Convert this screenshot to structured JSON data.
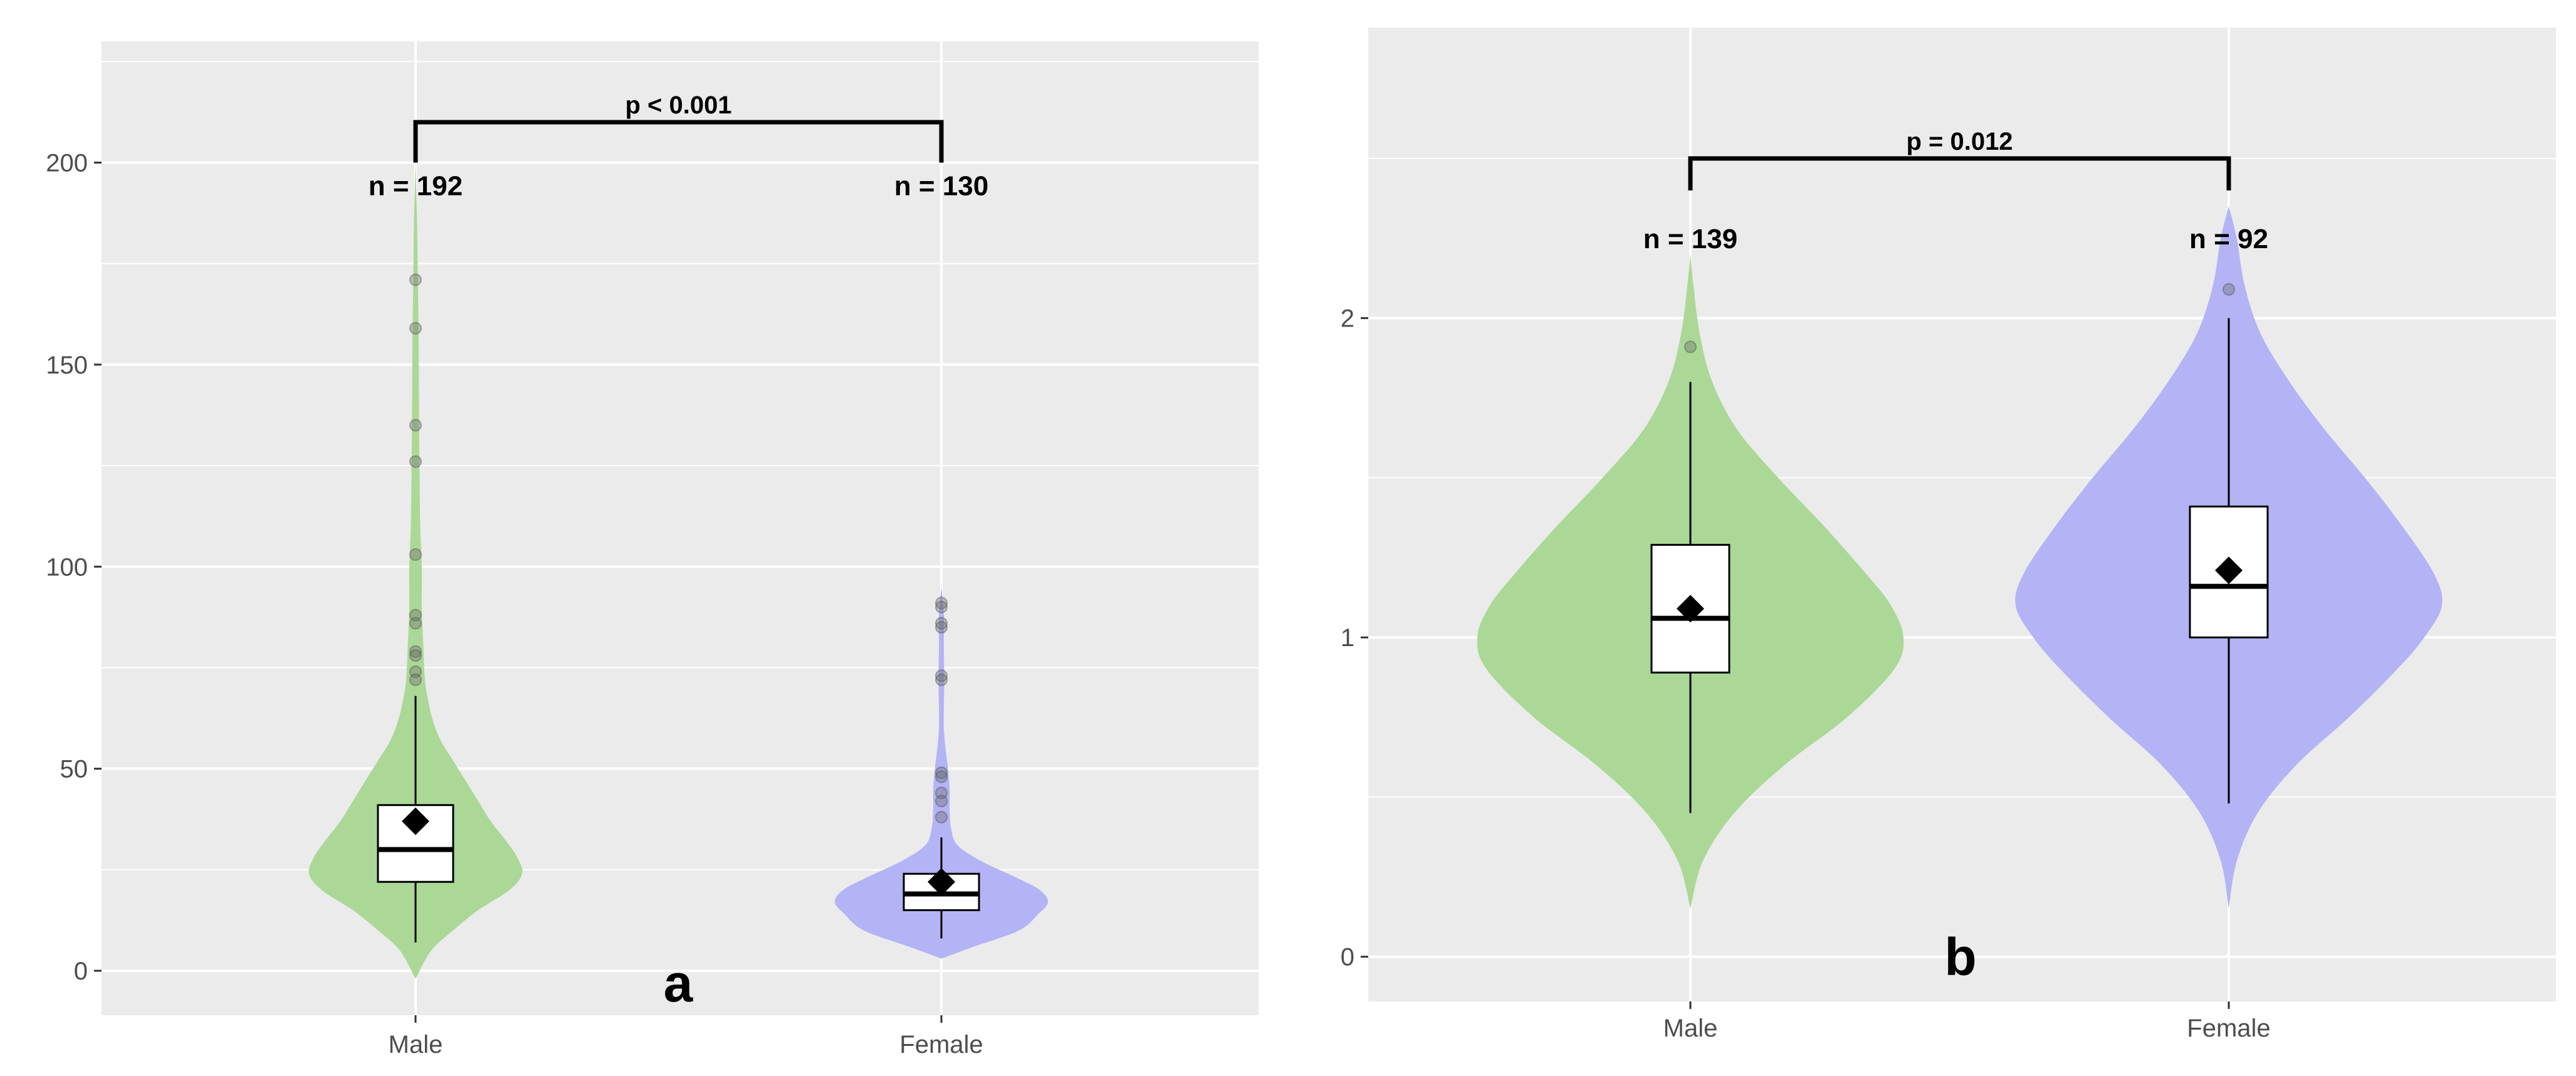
{
  "chart_data": [
    {
      "type": "violin",
      "panel_label": "a",
      "categories": [
        "Male",
        "Female"
      ],
      "ylim": [
        -11,
        230
      ],
      "yticks": [
        0,
        50,
        100,
        150,
        200
      ],
      "grid": true,
      "colors": {
        "Male": "#abd896",
        "Female": "#b3b3f5"
      },
      "annotation": {
        "text": "p < 0.001",
        "y": 210,
        "drop_to": 200
      },
      "groups": [
        {
          "name": "Male",
          "n_label": "n = 192",
          "box": {
            "whisker_low": 7,
            "q1": 22,
            "median": 30,
            "q3": 41,
            "whisker_high": 68
          },
          "mean": 37,
          "outliers": [
            171,
            159,
            135,
            126,
            103,
            88,
            86,
            79,
            78,
            74,
            72
          ],
          "violin": [
            [
              -2,
              0
            ],
            [
              5,
              10
            ],
            [
              10,
              24
            ],
            [
              15,
              40
            ],
            [
              20,
              60
            ],
            [
              24,
              68
            ],
            [
              28,
              65
            ],
            [
              32,
              58
            ],
            [
              37,
              48
            ],
            [
              42,
              40
            ],
            [
              47,
              32
            ],
            [
              52,
              24
            ],
            [
              57,
              16
            ],
            [
              62,
              11
            ],
            [
              67,
              8
            ],
            [
              72,
              6
            ],
            [
              80,
              5
            ],
            [
              90,
              4
            ],
            [
              100,
              4
            ],
            [
              110,
              3
            ],
            [
              125,
              2.5
            ],
            [
              140,
              2.2
            ],
            [
              155,
              2
            ],
            [
              170,
              1.5
            ],
            [
              185,
              1
            ],
            [
              200,
              0
            ]
          ]
        },
        {
          "name": "Female",
          "n_label": "n = 130",
          "box": {
            "whisker_low": 8,
            "q1": 15,
            "median": 19,
            "q3": 24,
            "whisker_high": 33
          },
          "mean": 22,
          "outliers": [
            91,
            90,
            86,
            85,
            73,
            72,
            49,
            48,
            44,
            42,
            38
          ],
          "violin": [
            [
              3,
              0
            ],
            [
              6,
              40
            ],
            [
              10,
              95
            ],
            [
              14,
              118
            ],
            [
              17,
              130
            ],
            [
              20,
              120
            ],
            [
              23,
              92
            ],
            [
              27,
              50
            ],
            [
              31,
              20
            ],
            [
              35,
              12
            ],
            [
              40,
              10
            ],
            [
              45,
              10
            ],
            [
              50,
              8
            ],
            [
              55,
              5
            ],
            [
              60,
              3
            ],
            [
              65,
              3
            ],
            [
              72,
              3.5
            ],
            [
              80,
              3
            ],
            [
              88,
              3
            ],
            [
              95,
              0
            ]
          ]
        }
      ]
    },
    {
      "type": "violin",
      "panel_label": "b",
      "categories": [
        "Male",
        "Female"
      ],
      "ylim": [
        -0.14,
        2.91
      ],
      "yticks": [
        0,
        1,
        2
      ],
      "grid": true,
      "colors": {
        "Male": "#abd896",
        "Female": "#b3b3f5"
      },
      "annotation": {
        "text": "p = 0.012",
        "y": 2.5,
        "drop_to": 2.4
      },
      "groups": [
        {
          "name": "Male",
          "n_label": "n = 139",
          "box": {
            "whisker_low": 0.45,
            "q1": 0.89,
            "median": 1.06,
            "q3": 1.29,
            "whisker_high": 1.8
          },
          "mean": 1.09,
          "outliers": [
            1.91
          ],
          "violin": [
            [
              0.15,
              0
            ],
            [
              0.3,
              8
            ],
            [
              0.45,
              28
            ],
            [
              0.6,
              60
            ],
            [
              0.75,
              100
            ],
            [
              0.9,
              130
            ],
            [
              1.0,
              136
            ],
            [
              1.1,
              128
            ],
            [
              1.2,
              112
            ],
            [
              1.35,
              85
            ],
            [
              1.5,
              56
            ],
            [
              1.65,
              30
            ],
            [
              1.8,
              14
            ],
            [
              1.95,
              6
            ],
            [
              2.1,
              2
            ],
            [
              2.2,
              0
            ]
          ]
        },
        {
          "name": "Female",
          "n_label": "n = 92",
          "box": {
            "whisker_low": 0.48,
            "q1": 1.0,
            "median": 1.16,
            "q3": 1.41,
            "whisker_high": 2.0
          },
          "mean": 1.21,
          "outliers": [
            2.09
          ],
          "violin": [
            [
              0.15,
              0
            ],
            [
              0.3,
              5
            ],
            [
              0.45,
              18
            ],
            [
              0.6,
              42
            ],
            [
              0.75,
              75
            ],
            [
              0.9,
              105
            ],
            [
              1.0,
              122
            ],
            [
              1.1,
              133
            ],
            [
              1.2,
              128
            ],
            [
              1.35,
              108
            ],
            [
              1.5,
              85
            ],
            [
              1.65,
              60
            ],
            [
              1.8,
              38
            ],
            [
              1.95,
              20
            ],
            [
              2.1,
              10
            ],
            [
              2.25,
              5
            ],
            [
              2.35,
              0
            ]
          ]
        }
      ]
    }
  ]
}
